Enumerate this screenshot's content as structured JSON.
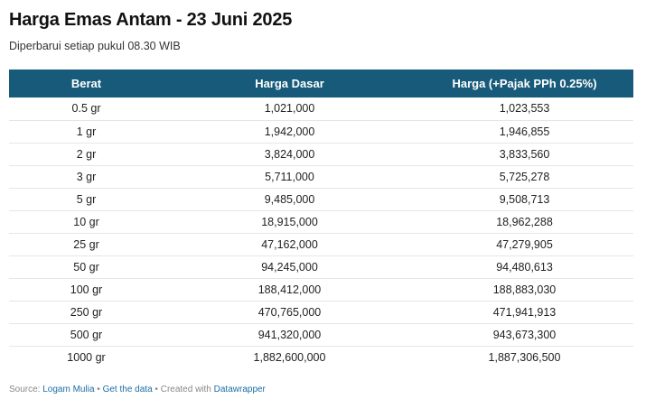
{
  "title": "Harga Emas Antam - 23 Juni 2025",
  "subtitle": "Diperbarui setiap pukul 08.30 WIB",
  "colors": {
    "header_bg": "#175a79",
    "header_text": "#ffffff",
    "link": "#1a6fa3"
  },
  "chart_data": {
    "type": "table",
    "columns": [
      "Berat",
      "Harga Dasar",
      "Harga (+Pajak PPh 0.25%)"
    ],
    "rows": [
      [
        "0.5 gr",
        "1,021,000",
        "1,023,553"
      ],
      [
        "1 gr",
        "1,942,000",
        "1,946,855"
      ],
      [
        "2 gr",
        "3,824,000",
        "3,833,560"
      ],
      [
        "3 gr",
        "5,711,000",
        "5,725,278"
      ],
      [
        "5 gr",
        "9,485,000",
        "9,508,713"
      ],
      [
        "10 gr",
        "18,915,000",
        "18,962,288"
      ],
      [
        "25 gr",
        "47,162,000",
        "47,279,905"
      ],
      [
        "50 gr",
        "94,245,000",
        "94,480,613"
      ],
      [
        "100 gr",
        "188,412,000",
        "188,883,030"
      ],
      [
        "250 gr",
        "470,765,000",
        "471,941,913"
      ],
      [
        "500 gr",
        "941,320,000",
        "943,673,300"
      ],
      [
        "1000 gr",
        "1,882,600,000",
        "1,887,306,500"
      ]
    ]
  },
  "footer": {
    "source_label": "Source:",
    "source_link": "Logam Mulia",
    "separator": "•",
    "get_data": "Get the data",
    "created_with": "Created with",
    "datawrapper": "Datawrapper"
  }
}
